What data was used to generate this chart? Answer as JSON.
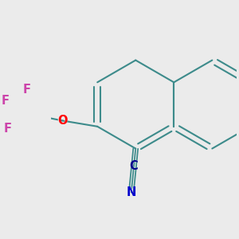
{
  "bg_color": "#ebebeb",
  "bond_color": "#3d8b8b",
  "bond_width": 1.5,
  "O_color": "#ff0000",
  "F_color": "#cc44aa",
  "N_color": "#0000cc",
  "C_color": "#00008b",
  "font_size": 10.5,
  "fig_bg": "#ebebeb",
  "xlim": [
    -0.55,
    1.05
  ],
  "ylim": [
    -0.85,
    0.75
  ]
}
